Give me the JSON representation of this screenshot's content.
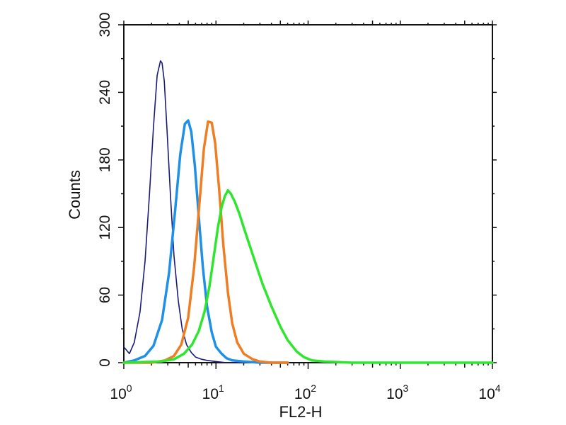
{
  "chart_data": {
    "type": "line",
    "title": "",
    "xlabel": "FL2-H",
    "ylabel": "Counts",
    "x_scale": "log",
    "xlim": [
      1,
      10000
    ],
    "ylim": [
      0,
      300
    ],
    "x_ticks": [
      {
        "value": 1,
        "base": "10",
        "exp": "0"
      },
      {
        "value": 10,
        "base": "10",
        "exp": "1"
      },
      {
        "value": 100,
        "base": "10",
        "exp": "2"
      },
      {
        "value": 1000,
        "base": "10",
        "exp": "3"
      },
      {
        "value": 10000,
        "base": "10",
        "exp": "4"
      }
    ],
    "y_ticks": [
      {
        "value": 0,
        "label": "0"
      },
      {
        "value": 60,
        "label": "60"
      },
      {
        "value": 120,
        "label": "120"
      },
      {
        "value": 180,
        "label": "180"
      },
      {
        "value": 240,
        "label": "240"
      },
      {
        "value": 300,
        "label": "300"
      }
    ],
    "grid": false,
    "legend": "none",
    "series": [
      {
        "color": "#1a1a7a",
        "x": [
          1.0,
          1.15,
          1.3,
          1.5,
          1.7,
          1.9,
          2.1,
          2.3,
          2.5,
          2.6,
          2.75,
          2.95,
          3.2,
          3.5,
          3.9,
          4.3,
          4.8,
          5.4,
          6.0,
          7.0,
          8.0,
          10.0,
          13.0,
          20.0
        ],
        "y": [
          14,
          8,
          18,
          45,
          90,
          150,
          210,
          255,
          268,
          266,
          250,
          205,
          150,
          95,
          55,
          30,
          16,
          9,
          5,
          3,
          2,
          1,
          0,
          0
        ]
      },
      {
        "color": "#1e90e8",
        "x": [
          1.0,
          1.3,
          1.7,
          2.1,
          2.6,
          3.1,
          3.6,
          4.1,
          4.6,
          5.0,
          5.4,
          5.9,
          6.5,
          7.2,
          8.0,
          9.0,
          10.0,
          11.5,
          13.0,
          15.0,
          20.0,
          30.0,
          60.0
        ],
        "y": [
          0,
          2,
          6,
          15,
          38,
          80,
          135,
          185,
          212,
          215,
          205,
          175,
          130,
          85,
          50,
          27,
          14,
          8,
          4,
          2,
          1,
          0,
          0
        ]
      },
      {
        "color": "#ef7d22",
        "x": [
          1.0,
          2.0,
          2.8,
          3.5,
          4.2,
          5.0,
          5.8,
          6.6,
          7.4,
          8.2,
          9.0,
          9.8,
          10.8,
          12.0,
          13.5,
          15.0,
          17.0,
          20.0,
          25.0,
          30.0,
          40.0,
          60.0
        ],
        "y": [
          0,
          0,
          2,
          6,
          16,
          40,
          85,
          140,
          190,
          214,
          213,
          195,
          155,
          105,
          62,
          35,
          18,
          8,
          3,
          1,
          0,
          0
        ]
      },
      {
        "color": "#2ee62e",
        "x": [
          1.0,
          2.5,
          3.5,
          4.5,
          5.5,
          6.5,
          7.5,
          8.5,
          9.5,
          10.5,
          11.5,
          12.5,
          13.5,
          14.5,
          16.0,
          18.0,
          20.0,
          23.0,
          27.0,
          32.0,
          40.0,
          50.0,
          60.0,
          75.0,
          90.0,
          110.0,
          150.0,
          300.0,
          10000.0
        ],
        "y": [
          0,
          1,
          3,
          8,
          16,
          28,
          45,
          68,
          95,
          120,
          138,
          148,
          153,
          150,
          143,
          132,
          120,
          105,
          88,
          70,
          50,
          32,
          20,
          10,
          5,
          2,
          1,
          0,
          0
        ]
      }
    ]
  }
}
